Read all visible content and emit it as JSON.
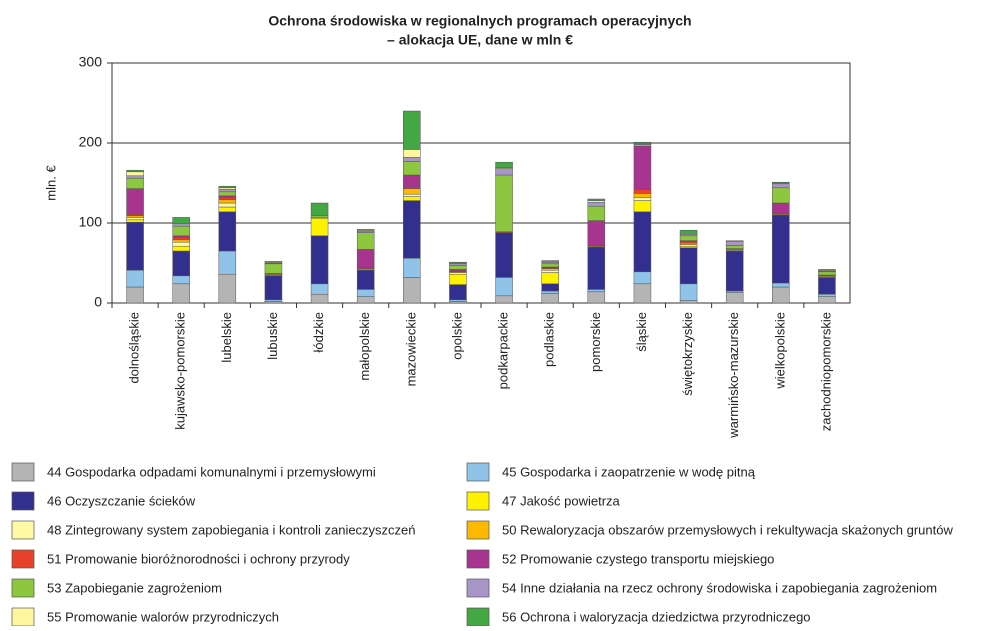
{
  "chart_data": {
    "type": "stacked_bar",
    "title": [
      "Ochrona środowiska w regionalnych programach operacyjnych",
      "– alokacja UE, dane w mln €"
    ],
    "y_label": "mln. €",
    "categories": [
      "dolnośląskie",
      "kujawsko-pomorskie",
      "lubelskie",
      "lubuskie",
      "łódzkie",
      "małopolskie",
      "mazowieckie",
      "opolskie",
      "podkarpackie",
      "podlaskie",
      "pomorskie",
      "śląskie",
      "świętokrzyskie",
      "warmińsko-mazurskie",
      "wielkopolskie",
      "zachodniopomorskie"
    ],
    "ylim": [
      0,
      300
    ],
    "yticks": [
      0,
      100,
      200,
      300
    ],
    "grid": true,
    "series": [
      {
        "name": "44 Gospodarka odpadami komunalnymi i przemysłowymi",
        "color": "#b4b4b4",
        "values": [
          20,
          24,
          36,
          2,
          11,
          8,
          32,
          2,
          9,
          12,
          14,
          24,
          3,
          13,
          20,
          8
        ]
      },
      {
        "name": "45 Gospodarka i zaopatrzenie w wodę pitną",
        "color": "#8fc4e8",
        "values": [
          21,
          10,
          29,
          2,
          13,
          9,
          24,
          2,
          23,
          3,
          3,
          15,
          21,
          2,
          5,
          3
        ]
      },
      {
        "name": "46 Oczyszczanie ścieków",
        "color": "#332f8f",
        "values": [
          60,
          31,
          49,
          30,
          60,
          24,
          72,
          19,
          56,
          9,
          53,
          75,
          45,
          50,
          85,
          21
        ]
      },
      {
        "name": "47 Jakość powietrza",
        "color": "#fff200",
        "values": [
          3,
          6,
          6,
          0,
          22,
          0,
          5,
          13,
          0,
          14,
          0,
          14,
          2,
          0,
          0,
          0
        ]
      },
      {
        "name": "48 Zintegrowany system zapobiegania i kontroli zanieczyszczeń",
        "color": "#fff9a6",
        "values": [
          3,
          5,
          5,
          1,
          1,
          1,
          3,
          2,
          0,
          3,
          0,
          4,
          2,
          1,
          0,
          1
        ]
      },
      {
        "name": "50 Rewaloryzacja obszarów przemysłowych i rekultywacja skażonych gruntów",
        "color": "#fbb900",
        "values": [
          2,
          3,
          4,
          1,
          0,
          1,
          7,
          1,
          0,
          2,
          1,
          5,
          2,
          1,
          1,
          1
        ]
      },
      {
        "name": "51 Promowanie bioróżnorodności i ochrony przyrody",
        "color": "#e8412b",
        "values": [
          2,
          3,
          3,
          1,
          0,
          1,
          2,
          1,
          1,
          1,
          1,
          5,
          2,
          1,
          1,
          1
        ]
      },
      {
        "name": "52 Promowanie czystego transportu miejskiego",
        "color": "#a7348f",
        "values": [
          32,
          2,
          2,
          0,
          0,
          23,
          15,
          2,
          0,
          1,
          31,
          54,
          1,
          0,
          13,
          0
        ]
      },
      {
        "name": "53 Zapobieganie zagrożeniom",
        "color": "#8dc63f",
        "values": [
          13,
          12,
          5,
          12,
          2,
          21,
          17,
          5,
          71,
          4,
          18,
          2,
          6,
          4,
          19,
          4
        ]
      },
      {
        "name": "54 Inne działania na rzecz ochrony środowiska i zapobiegania zagrożeniom",
        "color": "#a896c8",
        "values": [
          3,
          3,
          3,
          1,
          0,
          2,
          5,
          2,
          8,
          2,
          5,
          1,
          2,
          5,
          5,
          1
        ]
      },
      {
        "name": "55 Promowanie walorów przyrodniczych",
        "color": "#fff6a0",
        "values": [
          5,
          0,
          2,
          1,
          0,
          1,
          10,
          1,
          1,
          1,
          2,
          1,
          1,
          1,
          1,
          1
        ]
      },
      {
        "name": "56 Ochrona i waloryzacja dziedzictwa przyrodniczego",
        "color": "#43a743",
        "values": [
          2,
          8,
          2,
          1,
          16,
          1,
          48,
          1,
          7,
          1,
          2,
          1,
          4,
          0,
          1,
          1
        ]
      }
    ]
  }
}
